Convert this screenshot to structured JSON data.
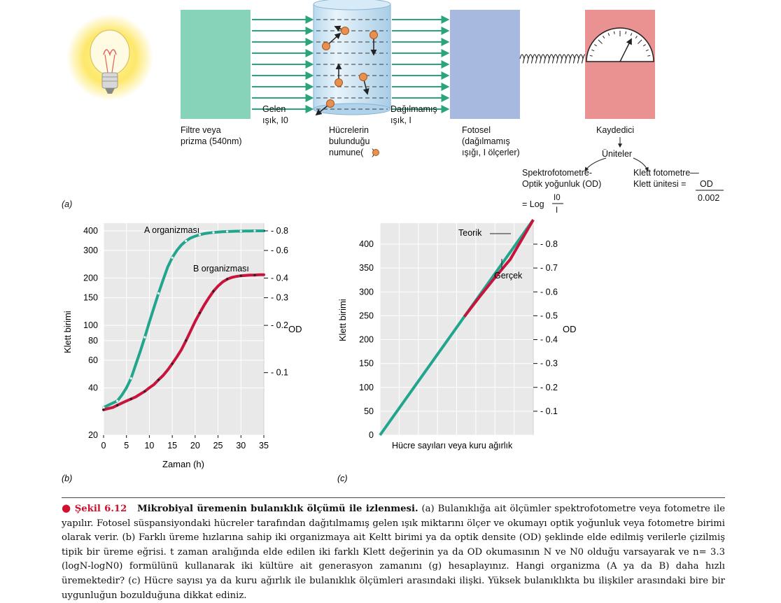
{
  "colors": {
    "green": "#22a58d",
    "red": "#c8143c",
    "filter": "#86d3b9",
    "photocell": "#a8b9df",
    "recorder": "#ea9191",
    "cell": "#e89050",
    "ray": "#2aa47a"
  },
  "panel_a": {
    "label": "(a)",
    "filter_label": [
      "Filtre veya",
      "prizma (540nm)"
    ],
    "incident_label": [
      "Gelen",
      "ışık, I0"
    ],
    "sample_label": [
      "Hücrelerin",
      "bulunduğu",
      "numune("
    ],
    "sample_label_end": ")",
    "unscattered_label": [
      "Dağılmamış",
      "ışık, I"
    ],
    "photocell_label": [
      "Fotosel",
      "(dağılmamış",
      "ışığı, I ölçerler)"
    ],
    "recorder_label": "Kaydedici",
    "units_label": "Üniteler",
    "spectro_label": [
      "Spektrofotometre-",
      "Optik yoğunluk (OD)"
    ],
    "log_eq": "= Log",
    "log_num": "I0",
    "log_den": "I",
    "klett_label": [
      "Klett fotometre—",
      "Klett ünitesi ="
    ],
    "klett_num": "OD",
    "klett_den": "0.002"
  },
  "chart_b": {
    "label": "(b)",
    "xlabel": "Zaman (h)",
    "ylabel": "Klett birimi",
    "ylabel_right": "OD",
    "x_ticks": [
      0,
      5,
      10,
      15,
      20,
      25,
      30,
      35
    ],
    "y_ticks": [
      20,
      40,
      60,
      80,
      100,
      150,
      200,
      300,
      400
    ],
    "y_ticks_right": [
      "0.1",
      "0.2",
      "0.3",
      "0.4",
      "0.6",
      "0.8"
    ],
    "y_right_values": [
      50,
      100,
      150,
      200,
      300,
      400
    ],
    "series": [
      {
        "name": "A organizması",
        "x": [
          0,
          1,
          2,
          3,
          4,
          5,
          6,
          7,
          8,
          9,
          10,
          11,
          12,
          13,
          14,
          15,
          16,
          17,
          18,
          19,
          20,
          21,
          22,
          23,
          24,
          25,
          26,
          27,
          28,
          29,
          30,
          31,
          32,
          33,
          34,
          35
        ],
        "y": [
          30,
          31,
          32,
          33,
          36,
          40,
          46,
          56,
          68,
          84,
          105,
          130,
          160,
          195,
          235,
          270,
          300,
          325,
          345,
          360,
          370,
          378,
          384,
          388,
          391,
          393,
          395,
          396,
          397,
          398,
          398,
          399,
          399,
          400,
          400,
          400
        ]
      },
      {
        "name": "B organizması",
        "x": [
          0,
          1,
          2,
          3,
          4,
          5,
          6,
          7,
          8,
          9,
          10,
          11,
          12,
          13,
          14,
          15,
          16,
          17,
          18,
          19,
          20,
          21,
          22,
          23,
          24,
          25,
          26,
          27,
          28,
          29,
          30,
          31,
          32,
          33,
          34,
          35
        ],
        "y": [
          29,
          29.5,
          30,
          31,
          32,
          33,
          34,
          35,
          36.5,
          38,
          40,
          42,
          45,
          48,
          52,
          57,
          63,
          70,
          80,
          92,
          106,
          120,
          135,
          150,
          165,
          178,
          189,
          197,
          202,
          205,
          207,
          208,
          209,
          209,
          210,
          210
        ]
      }
    ]
  },
  "chart_c": {
    "label": "(c)",
    "xlabel": "Hücre sayıları veya kuru ağırlık",
    "ylabel": "Klett birimi",
    "ylabel_right": "OD",
    "y_ticks": [
      0,
      50,
      100,
      150,
      200,
      250,
      300,
      350,
      400
    ],
    "y_ticks_right": [
      "0.1",
      "0.2",
      "0.3",
      "0.4",
      "0.5",
      "0.6",
      "0.7",
      "0.8"
    ],
    "series": [
      {
        "name": "Teorik",
        "x": [
          0,
          100
        ],
        "y": [
          0,
          451
        ]
      },
      {
        "name": "Gerçek",
        "x": [
          0,
          55,
          65,
          75,
          85,
          100
        ],
        "y": [
          0,
          248,
          290,
          330,
          368,
          451
        ]
      }
    ]
  },
  "caption": {
    "fig_no": "Şekil 6.12",
    "title": "Mikrobiyal üremenin bulanıklık ölçümü ile izlenmesi.",
    "text": " (a) Bulanıklığa ait ölçümler spektrofotometre veya fotometre ile yapılır. Fotosel süspansiyondaki hücreler tarafından dağıtılmamış gelen ışık miktarını ölçer ve okumayı optik yoğunluk veya fotometre birimi olarak verir. (b) Farklı üreme hızlarına sahip iki organizmaya ait Keltt birimi ya da optik densite (OD) şeklinde elde edilmiş verilerle çizilmiş tipik bir üreme eğrisi. t zaman aralığında elde edilen iki farklı Klett değerinin ya da OD okumasının N ve N0 olduğu varsayarak ve n= 3.3 (logN-logN0) formülünü kullanarak iki kültüre ait generasyon zamanını (g) hesaplayınız. Hangi organizma (A ya da B) daha hızlı üremektedir? (c) Hücre sayısı ya da kuru ağırlık ile bulanıklık ölçümleri arasındaki ilişki. Yüksek bulanıklıkta bu ilişkiler arasındaki bire bir uygunluğun bozulduğuna dikkat ediniz."
  }
}
